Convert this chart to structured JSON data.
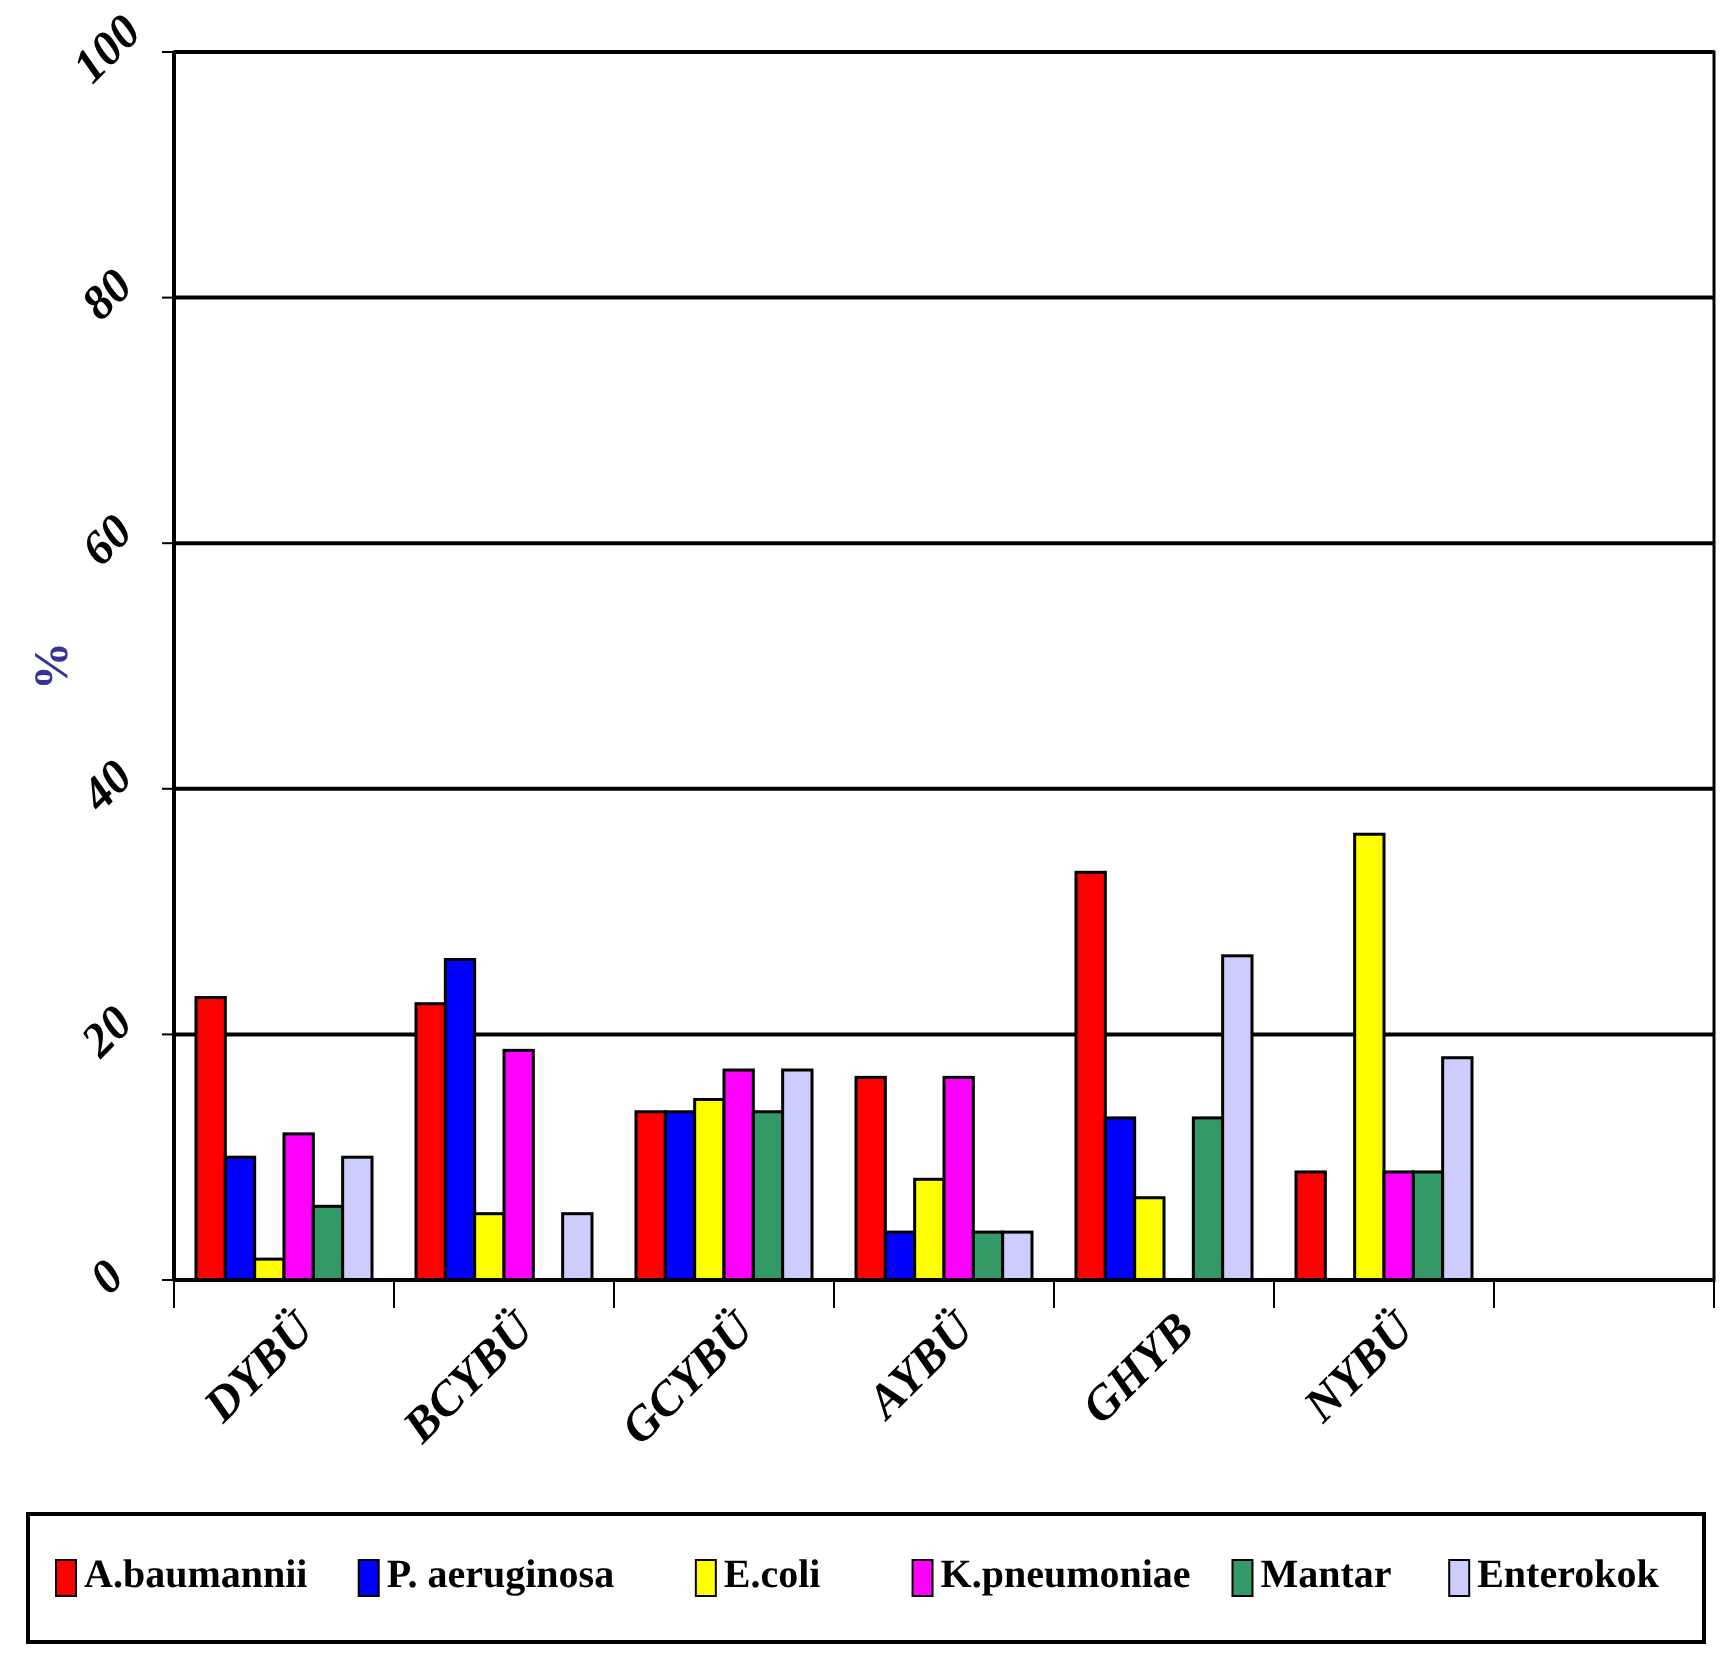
{
  "chart_data": {
    "type": "bar",
    "ylabel": "%",
    "categories": [
      "DYBÜ",
      "BCYBÜ",
      "GCYBÜ",
      "AYBÜ",
      "GHYB",
      "NYBÜ",
      null
    ],
    "series": [
      {
        "name": "A.baumannii",
        "color": "#ff0000",
        "values": [
          23,
          22.5,
          13.7,
          16.5,
          33.2,
          8.8,
          null
        ]
      },
      {
        "name": "P. aeruginosa",
        "color": "#0000ff",
        "values": [
          10,
          26.1,
          13.7,
          3.9,
          13.2,
          null,
          null
        ]
      },
      {
        "name": "E.coli",
        "color": "#ffff00",
        "values": [
          1.7,
          5.4,
          14.7,
          8.2,
          6.7,
          36.3,
          null
        ]
      },
      {
        "name": "K.pneumoniae",
        "color": "#ff00ff",
        "values": [
          11.9,
          18.7,
          17.1,
          16.5,
          null,
          8.8,
          null
        ]
      },
      {
        "name": "Mantar",
        "color": "#339966",
        "values": [
          6,
          null,
          13.7,
          3.9,
          13.2,
          8.8,
          null
        ]
      },
      {
        "name": "Enterokok",
        "color": "#ccccff",
        "values": [
          10,
          5.4,
          17.1,
          3.9,
          26.4,
          18.1,
          null
        ]
      }
    ],
    "ylim": [
      0,
      100
    ],
    "yticks": [
      0,
      20,
      40,
      60,
      80,
      100
    ],
    "grid": "y",
    "legend": "bottom"
  }
}
